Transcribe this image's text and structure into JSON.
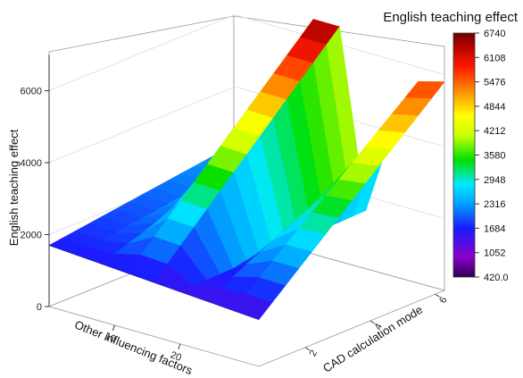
{
  "chart_data": {
    "type": "surface",
    "title": "English teaching effect",
    "zlabel": "English teaching effect",
    "xlabel": "Other influencing factors",
    "ylabel": "CAD calculation mode",
    "zlim": [
      0,
      7000
    ],
    "z_ticks": [
      "0",
      "2000",
      "4000",
      "6000"
    ],
    "x_ticks": [
      "10",
      "20"
    ],
    "y_ticks": [
      "2",
      "4",
      "6"
    ],
    "grid": true,
    "colorbar": {
      "min": 420.0,
      "max": 6740,
      "labels": [
        "6740",
        "6108",
        "5476",
        "4844",
        "4212",
        "3580",
        "2948",
        "2316",
        "1684",
        "1052",
        "420.0"
      ]
    },
    "surface_profile": {
      "description_values": "approximate surface height along the x direction (front edge), y values fade toward the back",
      "x": [
        0,
        4,
        8,
        12,
        16,
        20,
        24,
        28,
        32
      ],
      "front_z": [
        1700,
        1650,
        1600,
        1550,
        1500,
        1450,
        1400,
        1350,
        1300
      ],
      "back_z": [
        2400,
        2350,
        3400,
        6500,
        6500,
        1600,
        4000,
        5600,
        5800
      ]
    }
  }
}
